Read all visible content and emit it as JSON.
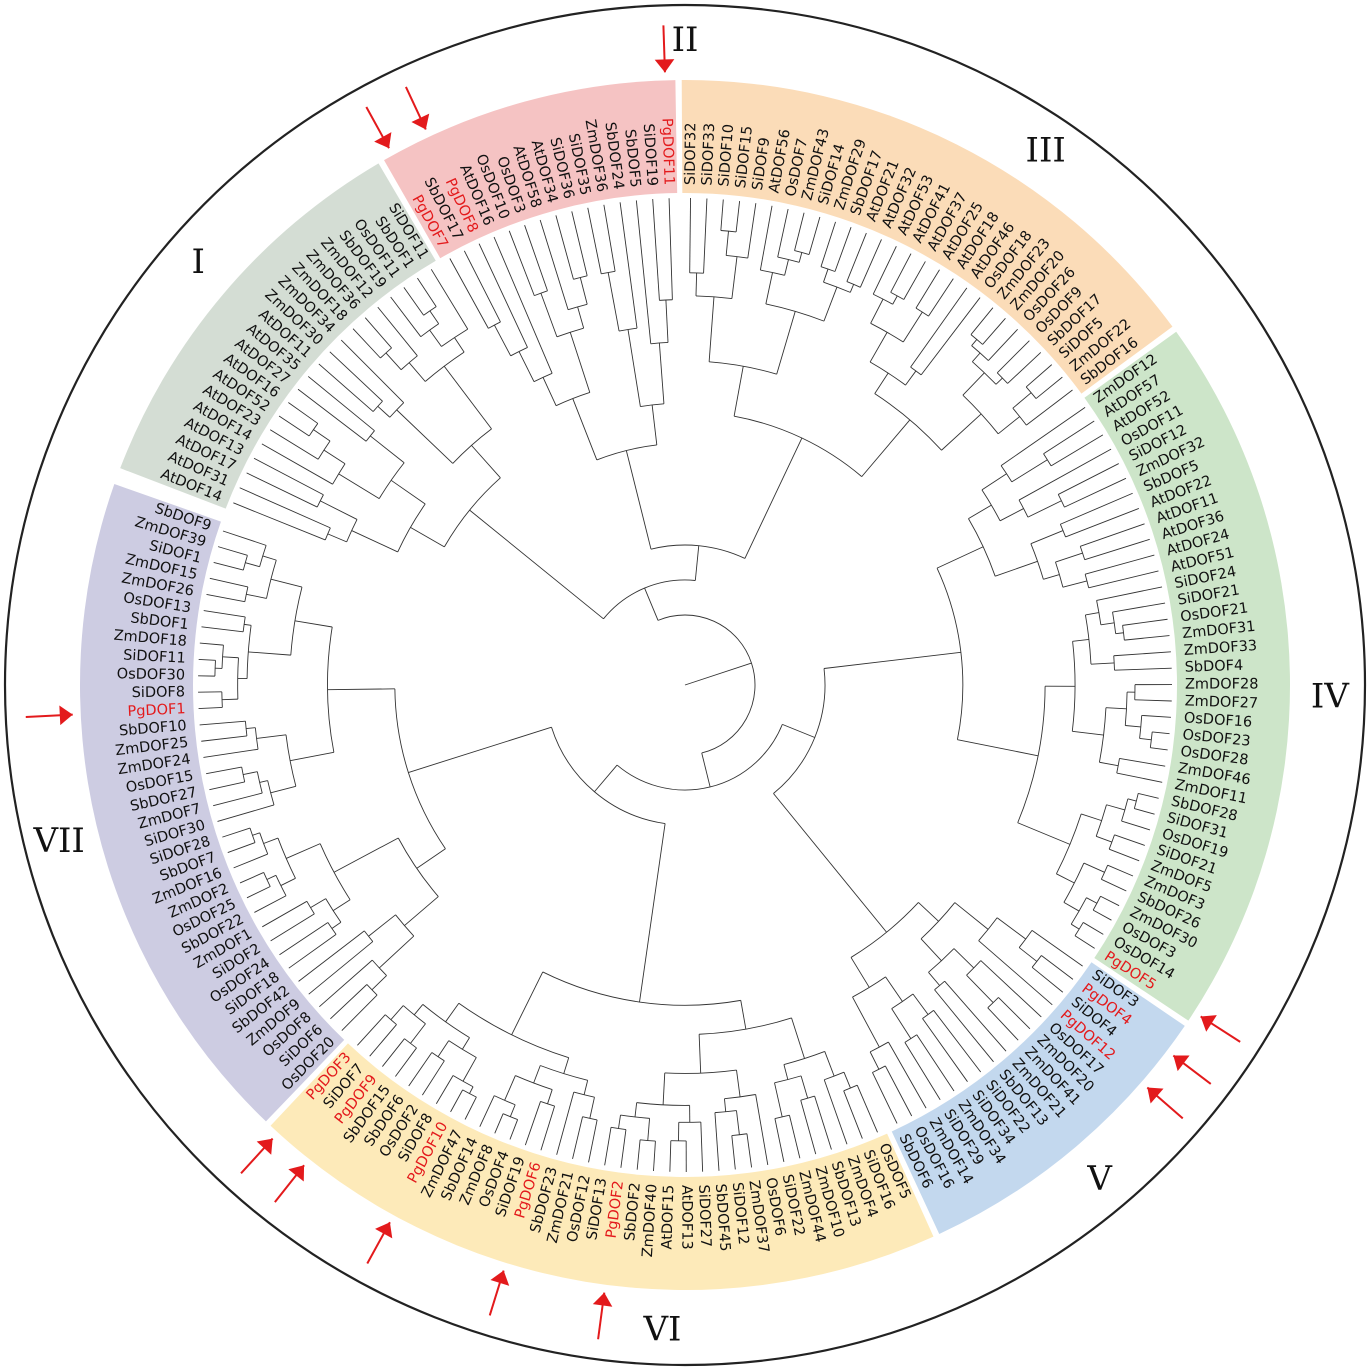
{
  "colors": {
    "I": "#d4ddd4",
    "II": "#f5c3c3",
    "III": "#fbdcb8",
    "IV": "#cde5c9",
    "V": "#c3d8ee",
    "VI": "#fdeab9",
    "VII": "#cdcce2",
    "highlight": "#e31a1c",
    "arrow": "#e31a1c"
  },
  "clade_labels": [
    {
      "id": "I",
      "text": "I"
    },
    {
      "id": "II",
      "text": "II"
    },
    {
      "id": "III",
      "text": "III"
    },
    {
      "id": "IV",
      "text": "IV"
    },
    {
      "id": "V",
      "text": "V"
    },
    {
      "id": "VI",
      "text": "VI"
    },
    {
      "id": "VII",
      "text": "VII"
    }
  ],
  "clades": [
    {
      "id": "I",
      "leaves": [
        "AtDOF14",
        "AtDOF31",
        "AtDOF17",
        "AtDOF13",
        "AtDOF14",
        "AtDOF23",
        "AtDOF52",
        "AtDOF16",
        "AtDOF27",
        "AtDOF35",
        "AtDOF11",
        "ZmDOF30",
        "ZmDOF34",
        "ZmDOF18",
        "ZmDOF36",
        "ZmDOF12",
        "SbDOF19",
        "OsDOF11",
        "SbDOF1",
        "SiDOF11"
      ]
    },
    {
      "id": "II",
      "leaves": [
        "PgDOF7",
        "SbDOF17",
        "PgDOF8",
        "AtDOF16",
        "OsDOF10",
        "OsDOF3",
        "AtDOF58",
        "AtDOF34",
        "SiDOF36",
        "SiDOF35",
        "ZmDOF36",
        "SbDOF24",
        "SbDOF5",
        "SiDOF19",
        "PgDOF11"
      ]
    },
    {
      "id": "III",
      "leaves": [
        "SiDOF32",
        "SiDOF33",
        "SiDOF10",
        "SiDOF15",
        "SiDOF9",
        "AtDOF56",
        "OsDOF7",
        "ZmDOF43",
        "SiDOF14",
        "ZmDOF29",
        "SbDOF17",
        "AtDOF21",
        "AtDOF32",
        "AtDOF53",
        "AtDOF41",
        "AtDOF37",
        "AtDOF25",
        "AtDOF18",
        "AtDOF46",
        "OsDOF18",
        "ZmDOF23",
        "ZmDOF20",
        "OsDOF26",
        "OsDOF9",
        "SbDOF17",
        "SiDOF5",
        "ZmDOF22",
        "SbDOF16"
      ]
    },
    {
      "id": "IV",
      "leaves": [
        "ZmDOF12",
        "AtDOF57",
        "AtDOF52",
        "OsDOF11",
        "SiDOF12",
        "ZmDOF32",
        "SbDOF5",
        "AtDOF22",
        "AtDOF11",
        "AtDOF36",
        "AtDOF24",
        "AtDOF51",
        "SiDOF24",
        "SiDOF21",
        "OsDOF21",
        "ZmDOF31",
        "ZmDOF33",
        "SbDOF4",
        "ZmDOF28",
        "ZmDOF27",
        "OsDOF16",
        "OsDOF23",
        "OsDOF28",
        "ZmDOF46",
        "ZmDOF11",
        "SbDOF28",
        "SiDOF31",
        "OsDOF19",
        "SiDOF21",
        "ZmDOF5",
        "ZmDOF3",
        "SbDOF26",
        "ZmDOF30",
        "OsDOF3",
        "OsDOF14",
        "PgDOF5"
      ]
    },
    {
      "id": "V",
      "leaves": [
        "SiDOF3",
        "PgDOF4",
        "SiDOF4",
        "PgDOF12",
        "OsDOF17",
        "ZmDOF20",
        "ZmDOF41",
        "ZmDOF21",
        "SbDOF13",
        "SiDOF22",
        "SiDOF34",
        "ZmDOF34",
        "SiDOF29",
        "ZmDOF14",
        "OsDOF16",
        "SbDOF6"
      ]
    },
    {
      "id": "VI",
      "leaves": [
        "OsDOF5",
        "SiDOF16",
        "ZmDOF4",
        "SbDOF13",
        "ZmDOF10",
        "ZmDOF44",
        "SiDOF22",
        "OsDOF6",
        "ZmDOF37",
        "SiDOF12",
        "SbDOF45",
        "SiDOF27",
        "AtDOF13",
        "AtDOF15",
        "ZmDOF40",
        "SbDOF2",
        "PgDOF2",
        "SiDOF13",
        "OsDOF12",
        "ZmDOF21",
        "SbDOF23",
        "PgDOF6",
        "SiDOF19",
        "OsDOF4",
        "ZmDOF8",
        "SbDOF14",
        "ZmDOF47",
        "PgDOF10",
        "SiDOF8",
        "OsDOF2",
        "SbDOF6",
        "SbDOF15",
        "PgDOF9",
        "SiDOF7",
        "PgDOF3"
      ]
    },
    {
      "id": "VII",
      "leaves": [
        "OsDOF20",
        "SiDOF6",
        "OsDOF8",
        "ZmDOF9",
        "SbDOF42",
        "SiDOF18",
        "OsDOF24",
        "SiDOF2",
        "ZmDOF1",
        "SbDOF22",
        "OsDOF25",
        "ZmDOF2",
        "ZmDOF16",
        "SbDOF7",
        "SiDOF28",
        "SiDOF30",
        "ZmDOF7",
        "SbDOF27",
        "OsDOF15",
        "ZmDOF24",
        "ZmDOF25",
        "SbDOF10",
        "PgDOF1",
        "SiDOF8",
        "OsDOF30",
        "SiDOF11",
        "ZmDOF18",
        "SbDOF1",
        "OsDOF13",
        "ZmDOF26",
        "ZmDOF15",
        "SiDOF1",
        "ZmDOF39",
        "SbDOF9"
      ]
    }
  ],
  "highlighted": [
    "PgDOF1",
    "PgDOF2",
    "PgDOF3",
    "PgDOF4",
    "PgDOF5",
    "PgDOF6",
    "PgDOF7",
    "PgDOF8",
    "PgDOF9",
    "PgDOF10",
    "PgDOF11",
    "PgDOF12"
  ]
}
